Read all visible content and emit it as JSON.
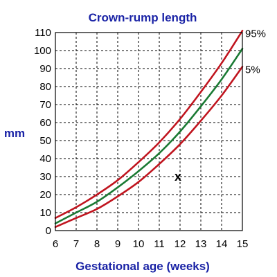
{
  "chart_data": {
    "type": "line",
    "title": "Crown-rump length",
    "xlabel": "Gestational age (weeks)",
    "ylabel": "mm",
    "xlim": [
      6,
      15
    ],
    "ylim": [
      0,
      110
    ],
    "grid": true,
    "x_ticks": [
      "6",
      "7",
      "8",
      "9",
      "10",
      "11",
      "12",
      "13",
      "14",
      "15"
    ],
    "y_ticks": [
      "0",
      "10",
      "20",
      "30",
      "40",
      "50",
      "60",
      "70",
      "80",
      "90",
      "100",
      "110"
    ],
    "x": [
      6,
      7,
      8,
      9,
      10,
      11,
      12,
      13,
      14,
      15
    ],
    "series": [
      {
        "name": "95%",
        "label": "95%",
        "color": "#c0141e",
        "values": [
          7,
          13,
          20,
          28,
          38,
          49,
          62,
          77,
          93,
          111
        ]
      },
      {
        "name": "",
        "label": "",
        "color": "#1a7a33",
        "values": [
          4,
          10,
          16,
          24,
          33,
          43,
          55,
          69,
          84,
          101
        ]
      },
      {
        "name": "5%",
        "label": "5%",
        "color": "#c0141e",
        "values": [
          2,
          7,
          12,
          19,
          27,
          37,
          48,
          61,
          75,
          91
        ]
      }
    ],
    "annotations": [
      {
        "text": "x",
        "x": 11.9,
        "y": 30
      }
    ]
  },
  "colors": {
    "title": "#1a23a6",
    "axis_label": "#1a23a6",
    "percentile_curve": "#c0141e",
    "median_curve": "#1a7a33"
  }
}
